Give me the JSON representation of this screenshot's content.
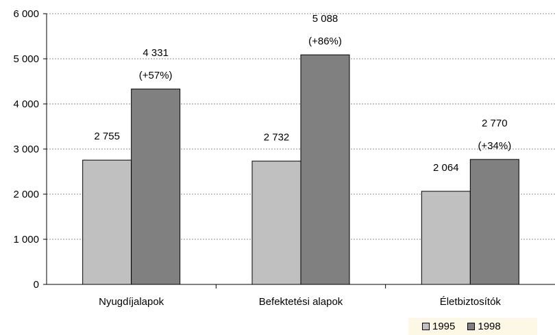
{
  "chart_data": {
    "type": "bar",
    "categories": [
      "Nyugdíjalapok",
      "Befektetési alapok",
      "Életbiztosítók"
    ],
    "series": [
      {
        "name": "1995",
        "values": [
          2755,
          2732,
          2064
        ],
        "color": "#c0c0c0",
        "labels": [
          "2 755",
          "2 732",
          "2 064"
        ]
      },
      {
        "name": "1998",
        "values": [
          4331,
          5088,
          2770
        ],
        "color": "#808080",
        "labels": [
          "4 331",
          "5 088",
          "2 770"
        ],
        "change_labels": [
          "(+57%)",
          "(+86%)",
          "(+34%)"
        ]
      }
    ],
    "ylim": [
      0,
      6000
    ],
    "yticks": [
      0,
      1000,
      2000,
      3000,
      4000,
      5000,
      6000
    ],
    "ytick_labels": [
      "0",
      "1 000",
      "2 000",
      "3 000",
      "4 000",
      "5 000",
      "6 000"
    ],
    "grid": true,
    "legend_position": "bottom-right",
    "title": "",
    "xlabel": "",
    "ylabel": ""
  }
}
